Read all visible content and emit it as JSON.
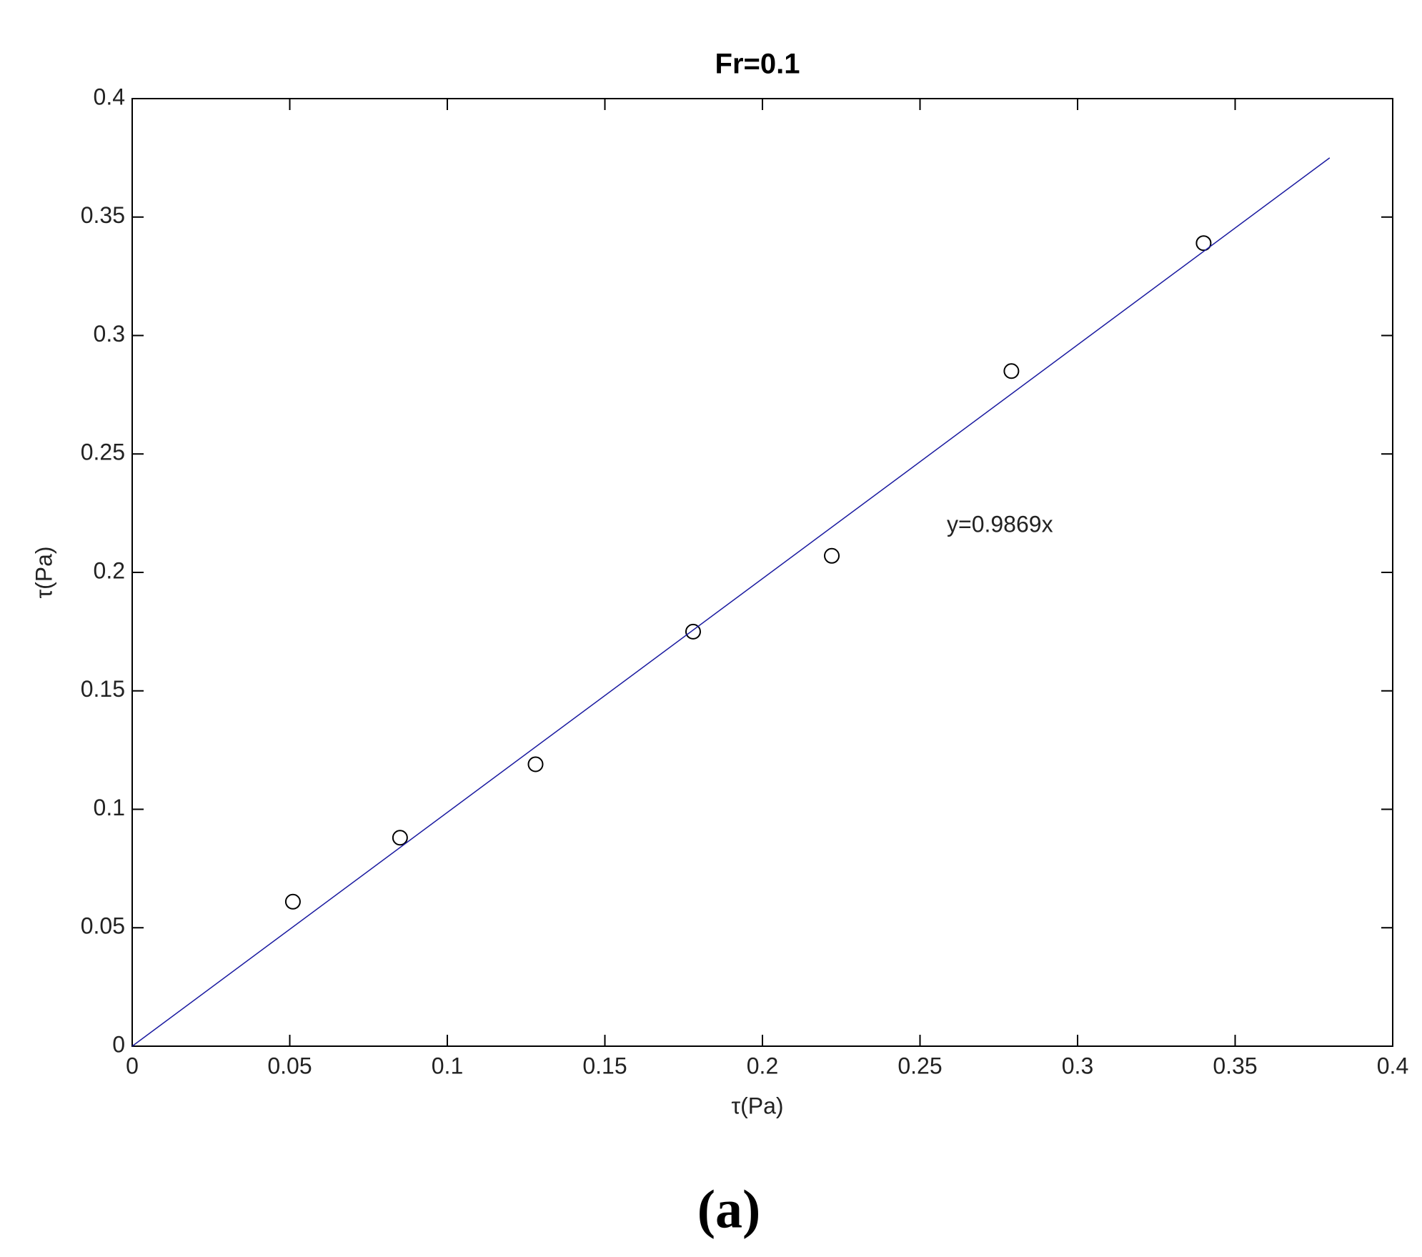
{
  "chart_data": {
    "type": "scatter",
    "title": "Fr=0.1",
    "xlabel": "τ(Pa)",
    "ylabel": "τ(Pa)",
    "xlim": [
      0,
      0.4
    ],
    "ylim": [
      0,
      0.4
    ],
    "xticks": [
      0,
      0.05,
      0.1,
      0.15,
      0.2,
      0.25,
      0.3,
      0.35,
      0.4
    ],
    "yticks": [
      0,
      0.05,
      0.1,
      0.15,
      0.2,
      0.25,
      0.3,
      0.35,
      0.4
    ],
    "series": [
      {
        "type": "scatter",
        "color": "#000000",
        "x": [
          0.051,
          0.085,
          0.128,
          0.178,
          0.222,
          0.279,
          0.34
        ],
        "values": [
          0.061,
          0.088,
          0.119,
          0.175,
          0.207,
          0.285,
          0.339
        ]
      },
      {
        "type": "line",
        "color": "#1a1aa0",
        "x": [
          0,
          0.38
        ],
        "values": [
          0,
          0.375
        ]
      }
    ],
    "annotations": [
      "y=0.9869x"
    ]
  },
  "caption": "(a)"
}
